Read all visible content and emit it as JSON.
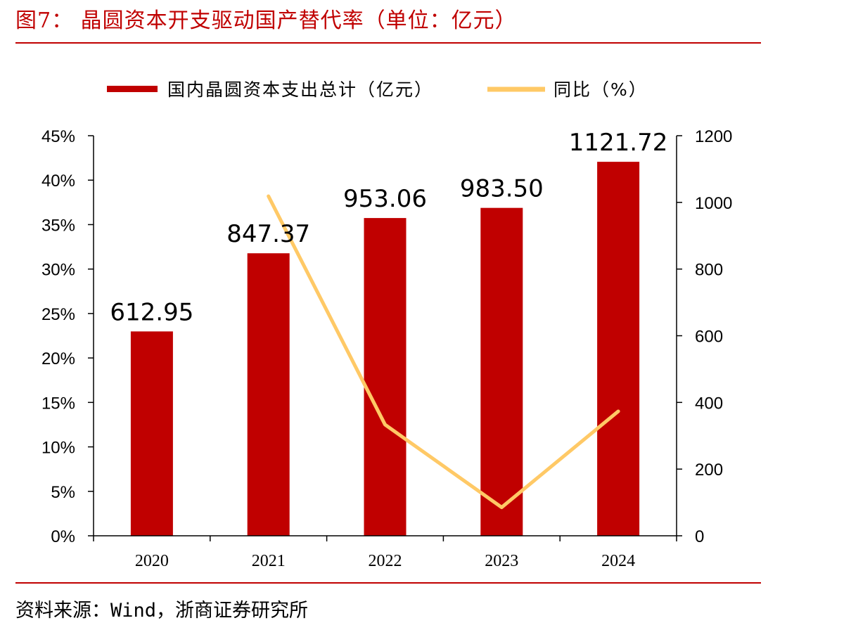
{
  "figure": {
    "title": "图7： 晶圆资本开支驱动国产替代率（单位：亿元）",
    "source": "资料来源：Wind，浙商证券研究所"
  },
  "colors": {
    "bar": "#c00000",
    "line": "#ffc966",
    "rule": "#c00000"
  },
  "chart_data": {
    "type": "bar",
    "categories": [
      "2020",
      "2021",
      "2022",
      "2023",
      "2024"
    ],
    "series": [
      {
        "name": "国内晶圆资本支出总计（亿元）",
        "type": "bar",
        "axis": "right",
        "values": [
          612.95,
          847.37,
          953.06,
          983.5,
          1121.72
        ],
        "labels": [
          "612.95",
          "847.37",
          "953.06",
          "983.50",
          "1121.72"
        ]
      },
      {
        "name": "同比（%）",
        "type": "line",
        "axis": "left",
        "x": [
          "2021",
          "2022",
          "2023",
          "2024"
        ],
        "values": [
          38.2,
          12.5,
          3.2,
          14.0
        ]
      }
    ],
    "y_left": {
      "range": [
        0,
        45
      ],
      "ticks": [
        "0%",
        "5%",
        "10%",
        "15%",
        "20%",
        "25%",
        "30%",
        "35%",
        "40%",
        "45%"
      ]
    },
    "y_right": {
      "range": [
        0,
        1200
      ],
      "ticks": [
        "0",
        "200",
        "400",
        "600",
        "800",
        "1000",
        "1200"
      ]
    },
    "legend_position": "top",
    "grid": false
  }
}
